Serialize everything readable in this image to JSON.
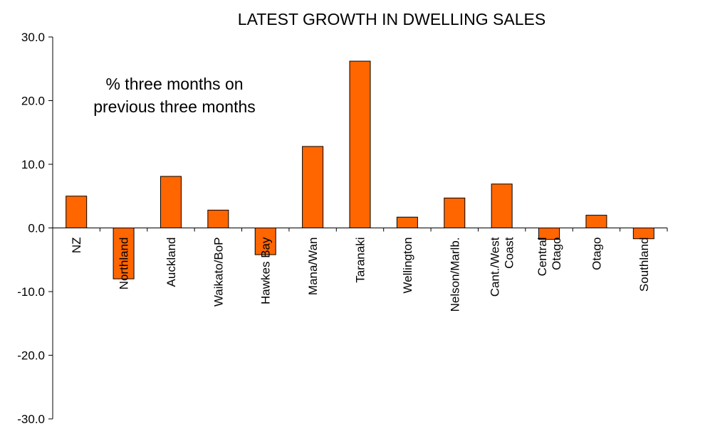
{
  "chart_data": {
    "type": "bar",
    "title": "LATEST GROWTH IN DWELLING SALES",
    "annotation": [
      "% three months on",
      "previous three months"
    ],
    "categories": [
      [
        "NZ"
      ],
      [
        "Northland"
      ],
      [
        "Auckland"
      ],
      [
        "Waikato/BoP"
      ],
      [
        "Hawkes Bay"
      ],
      [
        "Mana/Wan"
      ],
      [
        "Taranaki"
      ],
      [
        "Wellington"
      ],
      [
        "Nelson/Marlb."
      ],
      [
        "Cant./West",
        "Coast"
      ],
      [
        "Central",
        "Otago"
      ],
      [
        "Otago"
      ],
      [
        "Southland"
      ]
    ],
    "values": [
      5.0,
      -8.0,
      8.1,
      2.8,
      -4.2,
      12.8,
      26.2,
      1.7,
      4.7,
      6.9,
      -1.8,
      2.0,
      -1.7
    ],
    "ylim": [
      -30,
      30
    ],
    "yticks": [
      "-30.0",
      "-20.0",
      "-10.0",
      "0.0",
      "10.0",
      "20.0",
      "30.0"
    ],
    "xlabel": "",
    "ylabel": "",
    "grid": false,
    "bar_color": "#FF6600"
  }
}
